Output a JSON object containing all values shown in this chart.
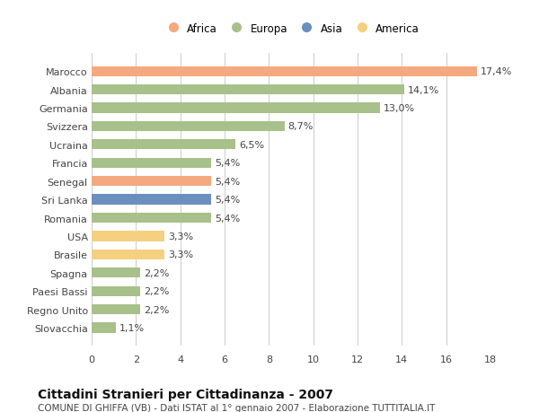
{
  "categories": [
    "Marocco",
    "Albania",
    "Germania",
    "Svizzera",
    "Ucraina",
    "Francia",
    "Senegal",
    "Sri Lanka",
    "Romania",
    "USA",
    "Brasile",
    "Spagna",
    "Paesi Bassi",
    "Regno Unito",
    "Slovacchia"
  ],
  "values": [
    17.4,
    14.1,
    13.0,
    8.7,
    6.5,
    5.4,
    5.4,
    5.4,
    5.4,
    3.3,
    3.3,
    2.2,
    2.2,
    2.2,
    1.1
  ],
  "labels": [
    "17,4%",
    "14,1%",
    "13,0%",
    "8,7%",
    "6,5%",
    "5,4%",
    "5,4%",
    "5,4%",
    "5,4%",
    "3,3%",
    "3,3%",
    "2,2%",
    "2,2%",
    "2,2%",
    "1,1%"
  ],
  "colors": [
    "#F4A97F",
    "#A8C08A",
    "#A8C08A",
    "#A8C08A",
    "#A8C08A",
    "#A8C08A",
    "#F4A97F",
    "#6B8FBF",
    "#A8C08A",
    "#F5D080",
    "#F5D080",
    "#A8C08A",
    "#A8C08A",
    "#A8C08A",
    "#A8C08A"
  ],
  "legend": [
    {
      "label": "Africa",
      "color": "#F4A97F"
    },
    {
      "label": "Europa",
      "color": "#A8C08A"
    },
    {
      "label": "Asia",
      "color": "#6B8FBF"
    },
    {
      "label": "America",
      "color": "#F5D080"
    }
  ],
  "xlim": [
    0,
    18
  ],
  "xticks": [
    0,
    2,
    4,
    6,
    8,
    10,
    12,
    14,
    16,
    18
  ],
  "title": "Cittadini Stranieri per Cittadinanza - 2007",
  "subtitle": "COMUNE DI GHIFFA (VB) - Dati ISTAT al 1° gennaio 2007 - Elaborazione TUTTITALIA.IT",
  "bg_color": "#FFFFFF",
  "grid_color": "#CCCCCC",
  "bar_height": 0.55,
  "title_fontsize": 10,
  "subtitle_fontsize": 7.5,
  "label_fontsize": 8,
  "tick_fontsize": 8,
  "legend_fontsize": 8.5
}
